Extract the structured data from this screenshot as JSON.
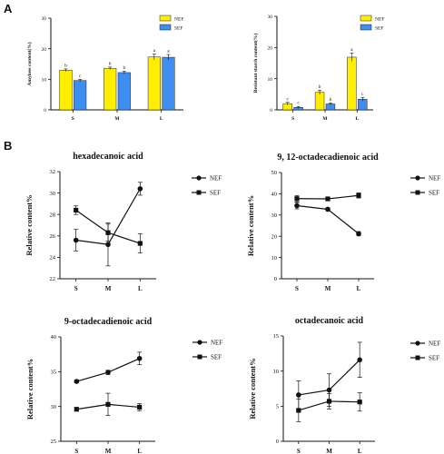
{
  "panel_labels": [
    "A",
    "B"
  ],
  "legend": {
    "nef": "NEF",
    "sef": "SEF"
  },
  "colors": {
    "nef_bar": "#ffee00",
    "sef_bar": "#3d8ef0",
    "line": "#111111"
  },
  "chart_data": [
    {
      "type": "bar",
      "title": "",
      "ylabel": "Amylose content(%)",
      "categories": [
        "S",
        "M",
        "L"
      ],
      "ylim": [
        0,
        30
      ],
      "yticks": [
        0,
        10,
        20,
        30
      ],
      "series": [
        {
          "name": "NEF",
          "values": [
            13.0,
            13.6,
            17.3
          ],
          "errors": [
            0.4,
            0.4,
            0.9
          ],
          "letters": [
            "b",
            "b",
            "a"
          ]
        },
        {
          "name": "SEF",
          "values": [
            9.6,
            12.2,
            17.2
          ],
          "errors": [
            0.4,
            0.4,
            0.9
          ],
          "letters": [
            "c",
            "b",
            "a"
          ]
        }
      ]
    },
    {
      "type": "bar",
      "title": "",
      "ylabel": "Resistant starch content(%)",
      "categories": [
        "S",
        "M",
        "L"
      ],
      "ylim": [
        0,
        30
      ],
      "yticks": [
        0,
        10,
        20,
        30
      ],
      "series": [
        {
          "name": "NEF",
          "values": [
            2.0,
            5.6,
            16.9
          ],
          "errors": [
            0.4,
            0.7,
            1.3
          ],
          "letters": [
            "c",
            "b",
            "a"
          ]
        },
        {
          "name": "SEF",
          "values": [
            0.8,
            1.9,
            3.4
          ],
          "errors": [
            0.3,
            0.3,
            0.6
          ],
          "letters": [
            "c",
            "b",
            "c"
          ]
        }
      ]
    },
    {
      "type": "line",
      "title": "hexadecanoic acid",
      "ylabel": "Relative content%",
      "categories": [
        "S",
        "M",
        "L"
      ],
      "ylim": [
        22,
        32
      ],
      "yticks": [
        22,
        24,
        26,
        28,
        30,
        32
      ],
      "series": [
        {
          "name": "NEF",
          "values": [
            25.6,
            25.2,
            30.4
          ],
          "errors": [
            1.0,
            2.0,
            0.6
          ]
        },
        {
          "name": "SEF",
          "values": [
            28.4,
            26.3,
            25.3
          ],
          "errors": [
            0.4,
            0.8,
            0.9
          ]
        }
      ]
    },
    {
      "type": "line",
      "title": "9, 12-octadecadienoic acid",
      "ylabel": "Relative content%",
      "categories": [
        "S",
        "M",
        "L"
      ],
      "ylim": [
        0,
        50
      ],
      "yticks": [
        0,
        10,
        20,
        30,
        40,
        50
      ],
      "series": [
        {
          "name": "NEF",
          "values": [
            34.4,
            32.7,
            21.2
          ],
          "errors": [
            1.5,
            0.7,
            1.0
          ]
        },
        {
          "name": "SEF",
          "values": [
            37.7,
            37.6,
            39.2
          ],
          "errors": [
            1.5,
            0.7,
            1.2
          ]
        }
      ]
    },
    {
      "type": "line",
      "title": "9-octadecadienoic acid",
      "ylabel": "Relative content%",
      "categories": [
        "S",
        "M",
        "L"
      ],
      "ylim": [
        25,
        40
      ],
      "yticks": [
        25,
        30,
        35,
        40
      ],
      "series": [
        {
          "name": "NEF",
          "values": [
            33.6,
            34.9,
            36.9
          ],
          "errors": [
            0.2,
            0.3,
            0.9
          ]
        },
        {
          "name": "SEF",
          "values": [
            29.6,
            30.3,
            29.9
          ],
          "errors": [
            0.2,
            1.6,
            0.5
          ]
        }
      ]
    },
    {
      "type": "line",
      "title": "octadecanoic acid",
      "ylabel": "Relative content%",
      "categories": [
        "S",
        "M",
        "L"
      ],
      "ylim": [
        0,
        15
      ],
      "yticks": [
        0,
        5,
        10,
        15
      ],
      "series": [
        {
          "name": "NEF",
          "values": [
            6.6,
            7.3,
            11.6
          ],
          "errors": [
            2.0,
            2.3,
            2.5
          ]
        },
        {
          "name": "SEF",
          "values": [
            4.4,
            5.7,
            5.6
          ],
          "errors": [
            1.6,
            1.1,
            1.3
          ]
        }
      ]
    }
  ]
}
